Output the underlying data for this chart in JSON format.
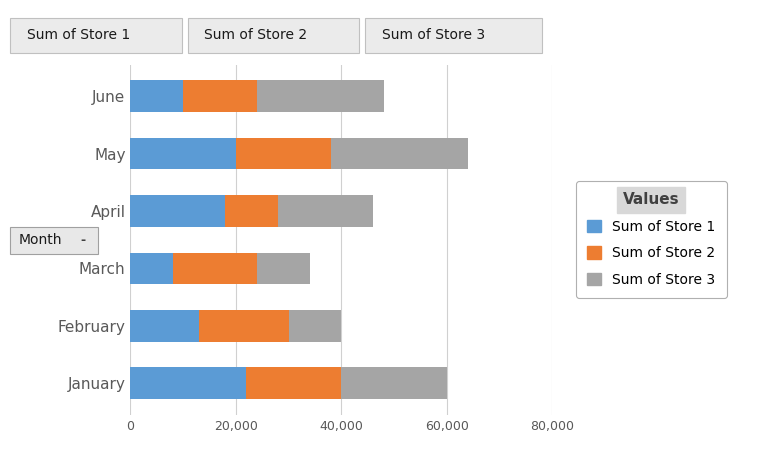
{
  "months": [
    "January",
    "February",
    "March",
    "April",
    "May",
    "June"
  ],
  "store1": [
    22000,
    13000,
    8000,
    18000,
    20000,
    10000
  ],
  "store2": [
    18000,
    17000,
    16000,
    10000,
    18000,
    14000
  ],
  "store3": [
    20000,
    10000,
    10000,
    18000,
    26000,
    24000
  ],
  "colors": [
    "#5B9BD5",
    "#ED7D31",
    "#A5A5A5"
  ],
  "legend_title": "Values",
  "legend_labels": [
    "Sum of Store 1",
    "Sum of Store 2",
    "Sum of Store 3"
  ],
  "header_labels": [
    "Sum of Store 1",
    "Sum of Store 2",
    "Sum of Store 3"
  ],
  "month_label": "Month",
  "xlim": [
    0,
    80000
  ],
  "xticks": [
    0,
    20000,
    40000,
    60000,
    80000
  ],
  "bar_height": 0.55,
  "background_color": "#FFFFFF",
  "plot_bg_color": "#FFFFFF",
  "grid_color": "#D0D0D0",
  "font_color": "#595959"
}
